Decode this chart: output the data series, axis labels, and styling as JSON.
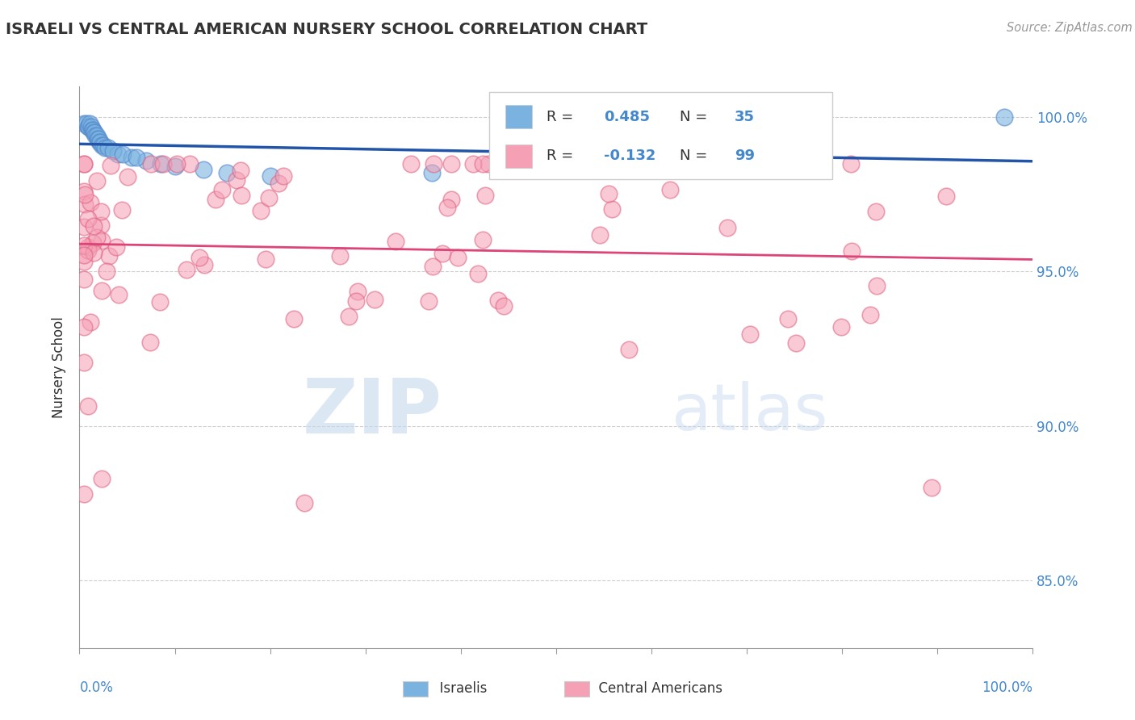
{
  "title": "ISRAELI VS CENTRAL AMERICAN NURSERY SCHOOL CORRELATION CHART",
  "source_text": "Source: ZipAtlas.com",
  "ylabel": "Nursery School",
  "right_ytick_labels": [
    "100.0%",
    "95.0%",
    "90.0%",
    "85.0%"
  ],
  "right_ytick_values": [
    1.0,
    0.95,
    0.9,
    0.85
  ],
  "ymin": 0.828,
  "ymax": 1.01,
  "xmin": 0.0,
  "xmax": 1.0,
  "legend_r_israeli": "0.485",
  "legend_n_israeli": "35",
  "legend_r_central": "-0.132",
  "legend_n_central": "99",
  "color_israeli_face": "#7ab3e0",
  "color_israeli_edge": "#5588cc",
  "color_central_face": "#f5a0b5",
  "color_central_edge": "#e06080",
  "color_trend_israeli": "#2255aa",
  "color_trend_central": "#dd4477",
  "background_color": "#ffffff",
  "watermark_color": "#c8ddf0",
  "grid_color": "#cccccc",
  "title_color": "#333333",
  "source_color": "#999999",
  "axis_label_color": "#4488cc",
  "text_color": "#333333"
}
